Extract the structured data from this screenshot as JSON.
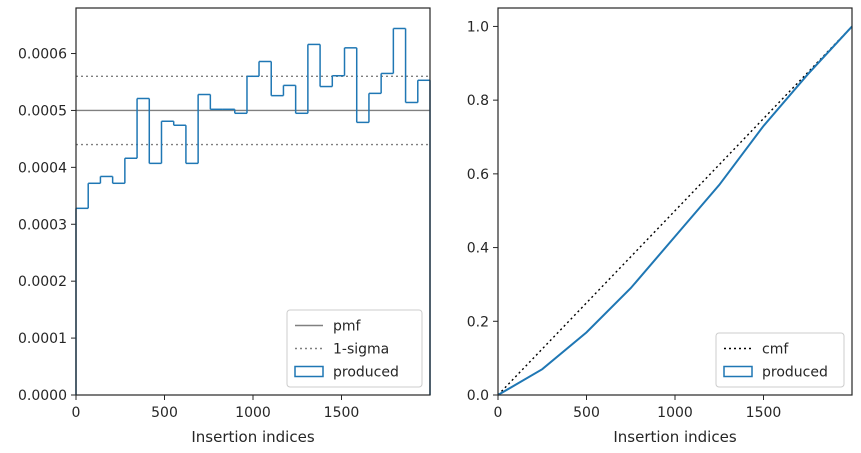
{
  "chart_data": [
    {
      "type": "histogram",
      "x_label": "Insertion indices",
      "xlim": [
        0,
        2000
      ],
      "ylim": [
        0,
        0.00068
      ],
      "xticks": [
        0,
        500,
        1000,
        1500
      ],
      "yticks": [
        {
          "value": 0,
          "label": "0.0000"
        },
        {
          "value": 0.0001,
          "label": "0.0001"
        },
        {
          "value": 0.0002,
          "label": "0.0002"
        },
        {
          "value": 0.0003,
          "label": "0.0003"
        },
        {
          "value": 0.0004,
          "label": "0.0004"
        },
        {
          "value": 0.0005,
          "label": "0.0005"
        },
        {
          "value": 0.0006,
          "label": "0.0006"
        }
      ],
      "bins": [
        0,
        69,
        138,
        207,
        276,
        345,
        414,
        483,
        552,
        621,
        690,
        759,
        828,
        897,
        966,
        1034,
        1103,
        1172,
        1241,
        1310,
        1379,
        1448,
        1517,
        1586,
        1655,
        1724,
        1793,
        1862,
        1931,
        2000
      ],
      "series": [
        {
          "name": "produced",
          "color": "#1f77b4",
          "values": [
            0.000328,
            0.000372,
            0.000384,
            0.000372,
            0.000416,
            0.000521,
            0.000407,
            0.000481,
            0.000474,
            0.000407,
            0.000528,
            0.000502,
            0.000502,
            0.000495,
            0.00056,
            0.000586,
            0.000526,
            0.000544,
            0.000495,
            0.000616,
            0.000542,
            0.000561,
            0.00061,
            0.000479,
            0.00053,
            0.000565,
            0.000644,
            0.000514,
            0.000553
          ]
        }
      ],
      "reference_lines": [
        {
          "name": "pmf",
          "color": "#808080",
          "style": "solid",
          "values": [
            0.0005
          ]
        },
        {
          "name": "1-sigma",
          "color": "#808080",
          "style": "dotted",
          "values": [
            0.00044,
            0.00056
          ]
        }
      ],
      "legend": "lower right"
    },
    {
      "type": "line",
      "x_label": "Insertion indices",
      "xlim": [
        0,
        2000
      ],
      "ylim": [
        0,
        1.05
      ],
      "xticks": [
        0,
        500,
        1000,
        1500
      ],
      "yticks": [
        {
          "value": 0,
          "label": "0.0"
        },
        0.2,
        0.4,
        0.6,
        0.8,
        {
          "value": 1,
          "label": "1.0"
        }
      ],
      "series": [
        {
          "name": "cmf",
          "color": "#000000",
          "style": "dotted",
          "x": [
            0,
            2000
          ],
          "values": [
            0,
            1
          ]
        },
        {
          "name": "produced",
          "color": "#1f77b4",
          "style": "step",
          "x": [
            0,
            250,
            500,
            750,
            1000,
            1250,
            1500,
            1750,
            2000
          ],
          "values": [
            0,
            0.07,
            0.17,
            0.29,
            0.43,
            0.57,
            0.73,
            0.87,
            1
          ]
        }
      ],
      "legend": "lower right"
    }
  ]
}
